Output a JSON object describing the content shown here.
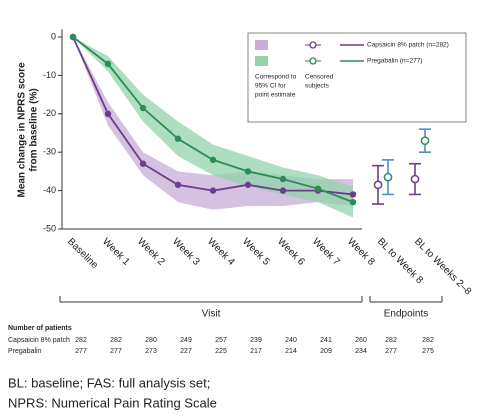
{
  "chart_data": {
    "type": "line",
    "ylabel": [
      "Mean change in NPRS score",
      "from baseline (%)"
    ],
    "categories": [
      "Baseline",
      "Week 1",
      "Week 2",
      "Week 3",
      "Week 4",
      "Week 5",
      "Week 6",
      "Week 7",
      "Week 8"
    ],
    "endpoint_categories": [
      "BL to Week 8",
      "BL to Weeks 2–8"
    ],
    "ylim": [
      -50,
      2
    ],
    "yticks": [
      0,
      -10,
      -20,
      -30,
      -40,
      -50
    ],
    "groups": [
      "Visit",
      "Endpoints"
    ],
    "legend_ci_label": [
      "Correspond to",
      "95% CI for",
      "point estimate"
    ],
    "legend_censored_label": [
      "Censored",
      "subjects"
    ],
    "series": [
      {
        "name": "Capsaicin 8% patch (n=282)",
        "color": "#6a3d8f",
        "band_color": "#c7acd6",
        "endpoint_bar_color": "#6a3d8f",
        "values": [
          0,
          -20,
          -33,
          -38.5,
          -40,
          -38.5,
          -40,
          -40,
          -41
        ],
        "ci_upper": [
          0,
          -17,
          -30,
          -35,
          -36,
          -35,
          -36,
          -37,
          -37
        ],
        "ci_lower": [
          0,
          -23,
          -36,
          -43,
          -45,
          -44,
          -44,
          -43,
          -44
        ],
        "endpoint_values": [
          -38.5,
          -37
        ],
        "endpoint_errors": [
          5,
          4
        ]
      },
      {
        "name": "Pregabalin (n=277)",
        "color": "#2e8b57",
        "band_color": "#92d3ab",
        "endpoint_bar_color": "#4a8fd4",
        "values": [
          0,
          -7,
          -18.5,
          -26.5,
          -32,
          -35,
          -37,
          -39.5,
          -43
        ],
        "ci_upper": [
          0,
          -5,
          -15,
          -22,
          -28,
          -31,
          -34,
          -36,
          -39
        ],
        "ci_lower": [
          0,
          -9,
          -22,
          -31,
          -36,
          -39,
          -41,
          -43,
          -47
        ],
        "endpoint_values": [
          -36.5,
          -27
        ],
        "endpoint_errors": [
          4.5,
          3
        ]
      }
    ],
    "patients": {
      "title": "Number of patients",
      "rows": [
        {
          "label": "Capsaicin 8% patch",
          "counts": [
            282,
            282,
            280,
            249,
            257,
            239,
            240,
            241,
            260,
            282,
            282
          ]
        },
        {
          "label": "Pregabalin",
          "counts": [
            277,
            277,
            273,
            227,
            225,
            217,
            214,
            209,
            234,
            277,
            275
          ]
        }
      ]
    }
  },
  "footnotes": [
    "BL: baseline; FAS: full analysis set;",
    "NPRS: Numerical Pain Rating Scale"
  ]
}
